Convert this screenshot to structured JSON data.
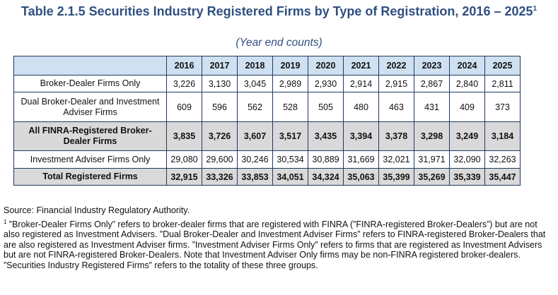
{
  "title": {
    "main": "Table 2.1.5 Securities Industry Registered Firms by Type of Registration, 2016 – 2025",
    "footnote_mark": "1",
    "subtitle": "(Year end counts)"
  },
  "table": {
    "years": [
      "2016",
      "2017",
      "2018",
      "2019",
      "2020",
      "2021",
      "2022",
      "2023",
      "2024",
      "2025"
    ],
    "rows": [
      {
        "label": "Broker-Dealer Firms Only",
        "values": [
          "3,226",
          "3,130",
          "3,045",
          "2,989",
          "2,930",
          "2,914",
          "2,915",
          "2,867",
          "2,840",
          "2,811"
        ]
      },
      {
        "label": "Dual Broker-Dealer and Investment Adviser Firms",
        "values": [
          "609",
          "596",
          "562",
          "528",
          "505",
          "480",
          "463",
          "431",
          "409",
          "373"
        ]
      },
      {
        "label": "All FINRA-Registered Broker-Dealer Firms",
        "values": [
          "3,835",
          "3,726",
          "3,607",
          "3,517",
          "3,435",
          "3,394",
          "3,378",
          "3,298",
          "3,249",
          "3,184"
        ]
      },
      {
        "label": "Investment Adviser Firms Only",
        "values": [
          "29,080",
          "29,600",
          "30,246",
          "30,534",
          "30,889",
          "31,669",
          "32,021",
          "31,971",
          "32,090",
          "32,263"
        ]
      },
      {
        "label": "Total Registered Firms",
        "values": [
          "32,915",
          "33,326",
          "33,853",
          "34,051",
          "34,324",
          "35,063",
          "35,399",
          "35,269",
          "35,339",
          "35,447"
        ]
      }
    ]
  },
  "notes": {
    "source": "Source: Financial Industry Regulatory Authority.",
    "footnote_mark": "1",
    "footnote": " ”Broker-Dealer Firms Only” refers to broker-dealer firms that are registered with FINRA (”FINRA-registered Broker-Dealers”) but are not also registered as Investment Advisers. ”Dual Broker-Dealer and Investment Adviser Firms” refers to FINRA-registered Broker-Dealers that are also registered as Investment Adviser firms. ”Investment Adviser Firms Only” refers to firms that are registered as Investment Advisers but are not FINRA-registered Broker-Dealers. Note that Investment Adviser Only firms may be non-FINRA registered broker-dealers. ”Securities Industry Registered Firms” refers to the totality of these three groups."
  }
}
